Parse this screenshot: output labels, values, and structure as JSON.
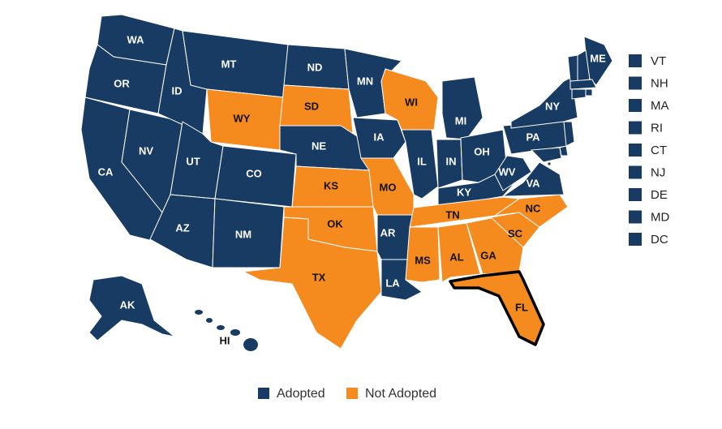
{
  "map": {
    "legend": [
      {
        "label": "Adopted",
        "color": "#173b63",
        "text_color": "#ffffff"
      },
      {
        "label": "Not Adopted",
        "color": "#f58a1f",
        "text_color": "#111111"
      }
    ],
    "states": [
      {
        "label": "WA",
        "status": 0
      },
      {
        "label": "OR",
        "status": 0
      },
      {
        "label": "CA",
        "status": 0
      },
      {
        "label": "NV",
        "status": 0
      },
      {
        "label": "ID",
        "status": 0
      },
      {
        "label": "MT",
        "status": 0
      },
      {
        "label": "WY",
        "status": 1
      },
      {
        "label": "UT",
        "status": 0
      },
      {
        "label": "CO",
        "status": 0
      },
      {
        "label": "AZ",
        "status": 0
      },
      {
        "label": "NM",
        "status": 0
      },
      {
        "label": "ND",
        "status": 0
      },
      {
        "label": "SD",
        "status": 1
      },
      {
        "label": "NE",
        "status": 0
      },
      {
        "label": "KS",
        "status": 1
      },
      {
        "label": "OK",
        "status": 1
      },
      {
        "label": "TX",
        "status": 1
      },
      {
        "label": "MN",
        "status": 0
      },
      {
        "label": "IA",
        "status": 0
      },
      {
        "label": "MO",
        "status": 1
      },
      {
        "label": "AR",
        "status": 0
      },
      {
        "label": "LA",
        "status": 0
      },
      {
        "label": "WI",
        "status": 1
      },
      {
        "label": "IL",
        "status": 0
      },
      {
        "label": "MI",
        "status": 0
      },
      {
        "label": "IN",
        "status": 0
      },
      {
        "label": "OH",
        "status": 0
      },
      {
        "label": "KY",
        "status": 0
      },
      {
        "label": "TN",
        "status": 1
      },
      {
        "label": "MS",
        "status": 1
      },
      {
        "label": "AL",
        "status": 1
      },
      {
        "label": "GA",
        "status": 1
      },
      {
        "label": "FL",
        "status": 1,
        "outlined": true
      },
      {
        "label": "SC",
        "status": 1
      },
      {
        "label": "NC",
        "status": 1
      },
      {
        "label": "VA",
        "status": 0
      },
      {
        "label": "WV",
        "status": 0
      },
      {
        "label": "PA",
        "status": 0
      },
      {
        "label": "NY",
        "status": 0
      },
      {
        "label": "ME",
        "status": 0
      },
      {
        "label": "AK",
        "status": 0
      },
      {
        "label": "HI",
        "status": 0
      }
    ],
    "small_states": [
      {
        "label": "VT",
        "status": 0
      },
      {
        "label": "NH",
        "status": 0
      },
      {
        "label": "MA",
        "status": 0
      },
      {
        "label": "RI",
        "status": 0
      },
      {
        "label": "CT",
        "status": 0
      },
      {
        "label": "NJ",
        "status": 0
      },
      {
        "label": "DE",
        "status": 0
      },
      {
        "label": "MD",
        "status": 0
      },
      {
        "label": "DC",
        "status": 0
      }
    ]
  }
}
